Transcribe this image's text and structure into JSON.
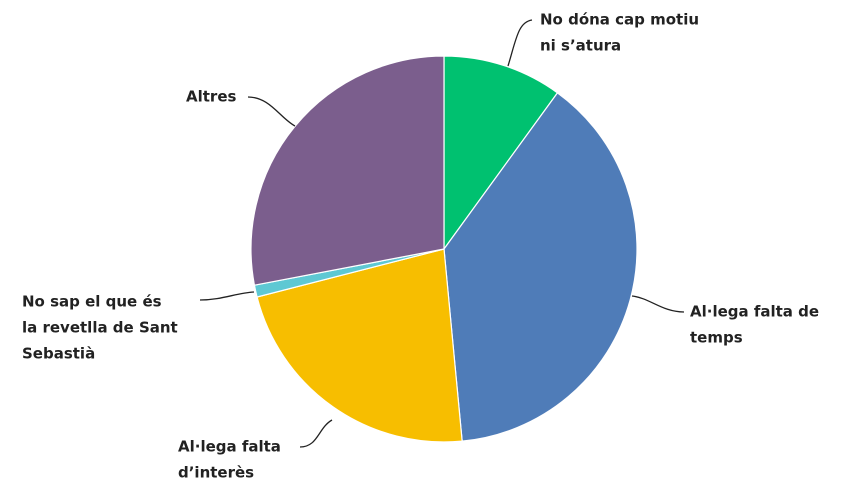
{
  "chart_data": {
    "type": "pie",
    "categories": [
      [
        "No dóna cap motiu",
        "ni s’atura"
      ],
      [
        "Al·lega falta de",
        "temps"
      ],
      [
        "Al·lega falta",
        "d’interès"
      ],
      [
        "No sap el que és",
        "la revetlla de Sant",
        "Sebastià"
      ],
      [
        "Altres"
      ]
    ],
    "values": [
      10,
      38.5,
      22.5,
      1,
      28
    ],
    "colors": [
      "#00c170",
      "#4f7cb8",
      "#f7be00",
      "#5ec8d3",
      "#7b5e8d"
    ]
  }
}
